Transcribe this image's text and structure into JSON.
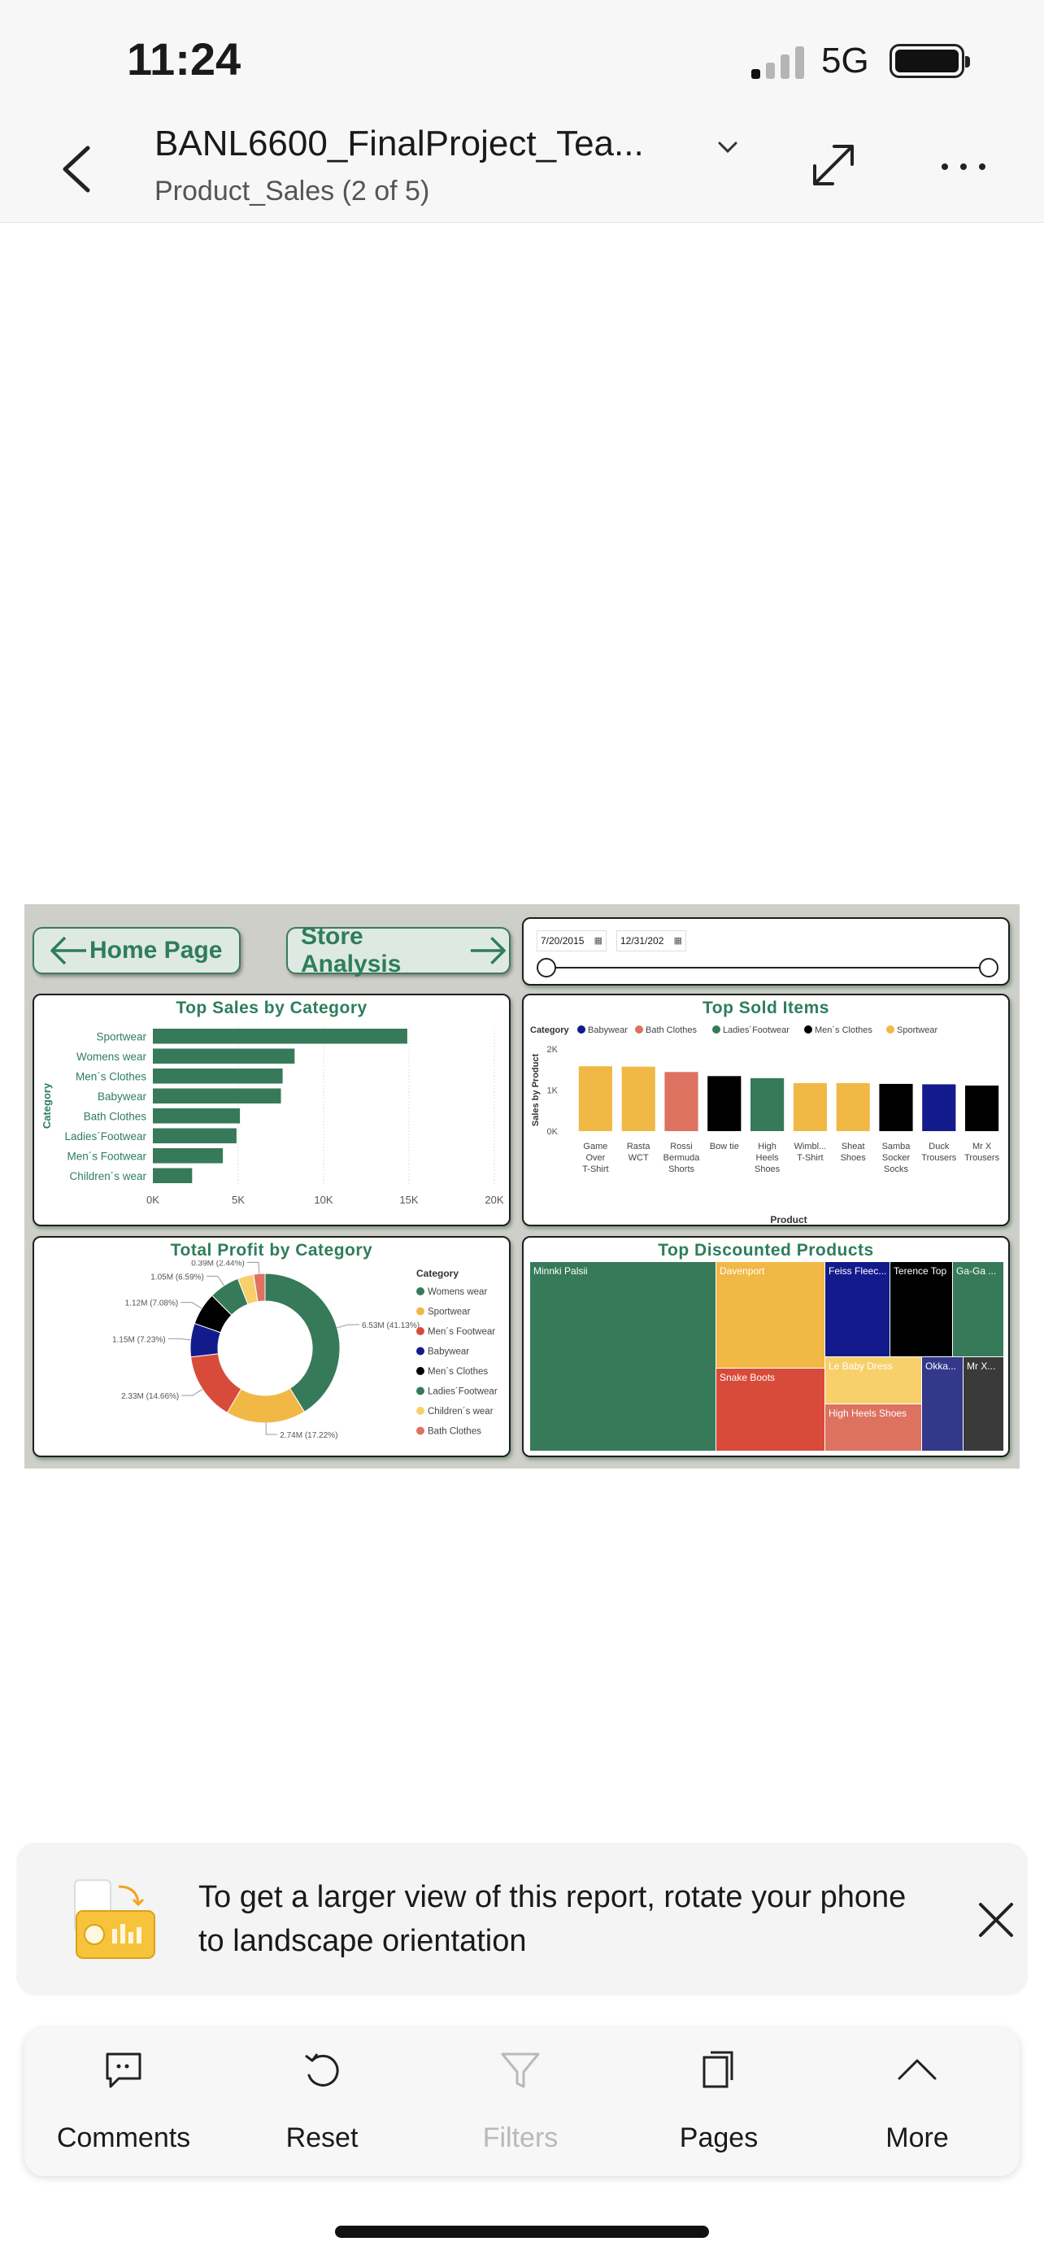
{
  "status": {
    "time": "11:24",
    "network": "5G"
  },
  "header": {
    "title": "BANL6600_FinalProject_Tea...",
    "subtitle": "Product_Sales (2 of 5)"
  },
  "report": {
    "home_button": "Home Page",
    "store_button": "Store Analysis",
    "date_start": "7/20/2015",
    "date_end": "12/31/202",
    "colors": {
      "green": "#367a5a",
      "yellow": "#f2b845",
      "salmon": "#dd7261",
      "black": "#000000",
      "navy": "#131b8c",
      "red": "#d84b3a",
      "light_yellow": "#f7d06c",
      "grey": "#3a3a3a",
      "purple": "#33388b"
    }
  },
  "chart_data": [
    {
      "type": "bar",
      "orientation": "horizontal",
      "title": "Top Sales by Category",
      "ylabel": "Category",
      "categories": [
        "Sportwear",
        "Womens wear",
        "Men´s Clothes",
        "Babywear",
        "Bath Clothes",
        "Ladies´Footwear",
        "Men´s Footwear",
        "Children´s wear"
      ],
      "values": [
        14900,
        8300,
        7600,
        7500,
        5100,
        4900,
        4100,
        2300
      ],
      "xlim": [
        0,
        20000
      ],
      "xticks": [
        "0K",
        "5K",
        "10K",
        "15K",
        "20K"
      ],
      "color": "#367a5a",
      "grid": true
    },
    {
      "type": "bar",
      "title": "Top Sold Items",
      "xlabel": "Product",
      "ylabel": "Sales by Product",
      "legend_title": "Category",
      "legend": [
        {
          "name": "Babywear",
          "color": "#131b8c"
        },
        {
          "name": "Bath Clothes",
          "color": "#dd7261"
        },
        {
          "name": "Ladies´Footwear",
          "color": "#367a5a"
        },
        {
          "name": "Men´s Clothes",
          "color": "#000000"
        },
        {
          "name": "Sportwear",
          "color": "#f2b845"
        }
      ],
      "categories": [
        [
          "Game",
          "Over",
          "T-Shirt"
        ],
        [
          "Rasta",
          "WCT"
        ],
        [
          "Rossi",
          "Bermuda",
          "Shorts"
        ],
        [
          "Bow tie"
        ],
        [
          "High",
          "Heels",
          "Shoes"
        ],
        [
          "Wimbl...",
          "T-Shirt"
        ],
        [
          "Sheat",
          "Shoes"
        ],
        [
          "Samba",
          "Socker",
          "Socks"
        ],
        [
          "Duck",
          "Trousers"
        ],
        [
          "Mr X",
          "Trousers"
        ]
      ],
      "values": [
        1580,
        1570,
        1440,
        1340,
        1290,
        1170,
        1170,
        1150,
        1140,
        1110
      ],
      "colors": [
        "#f2b845",
        "#f2b845",
        "#dd7261",
        "#000000",
        "#367a5a",
        "#f2b845",
        "#f2b845",
        "#000000",
        "#131b8c",
        "#000000"
      ],
      "ylim": [
        0,
        2000
      ],
      "yticks": [
        "0K",
        "1K",
        "2K"
      ]
    },
    {
      "type": "pie",
      "donut": true,
      "title": "Total Profit by Category",
      "legend_title": "Category",
      "slices": [
        {
          "name": "Womens wear",
          "value": 6.53,
          "label": "6.53M (41.13%)",
          "color": "#367a5a"
        },
        {
          "name": "Sportwear",
          "value": 2.74,
          "label": "2.74M (17.22%)",
          "color": "#f2b845"
        },
        {
          "name": "Men´s Footwear",
          "value": 2.33,
          "label": "2.33M (14.66%)",
          "color": "#d84b3a"
        },
        {
          "name": "Babywear",
          "value": 1.15,
          "label": "1.15M (7.23%)",
          "color": "#131b8c"
        },
        {
          "name": "Men´s Clothes",
          "value": 1.12,
          "label": "1.12M (7.08%)",
          "color": "#000000"
        },
        {
          "name": "Ladies´Footwear",
          "value": 1.05,
          "label": "1.05M (6.59%)",
          "color": "#367a5a"
        },
        {
          "name": "Children´s wear",
          "value": 0.55,
          "label": "",
          "color": "#f7d06c"
        },
        {
          "name": "Bath Clothes",
          "value": 0.39,
          "label": "0.39M (2.44%)",
          "color": "#dd7261"
        }
      ]
    },
    {
      "type": "treemap",
      "title": "Top Discounted Products",
      "items": [
        {
          "name": "Minnki Palsii",
          "color": "#367a5a"
        },
        {
          "name": "Davenport",
          "color": "#f2b845"
        },
        {
          "name": "Snake Boots",
          "color": "#d84b3a"
        },
        {
          "name": "Feiss Fleec...",
          "color": "#131b8c"
        },
        {
          "name": "Terence Top",
          "color": "#000000"
        },
        {
          "name": "Ga-Ga ...",
          "color": "#367a5a"
        },
        {
          "name": "Le Baby Dress",
          "color": "#f7d06c"
        },
        {
          "name": "High Heels Shoes",
          "color": "#dd7261"
        },
        {
          "name": "Okka...",
          "color": "#33388b"
        },
        {
          "name": "Mr X...",
          "color": "#3a3a3a"
        }
      ]
    }
  ],
  "banner": {
    "text": "To get a larger view of this report, rotate your phone to landscape orientation"
  },
  "toolbar": {
    "comments": "Comments",
    "reset": "Reset",
    "filters": "Filters",
    "pages": "Pages",
    "more": "More"
  }
}
